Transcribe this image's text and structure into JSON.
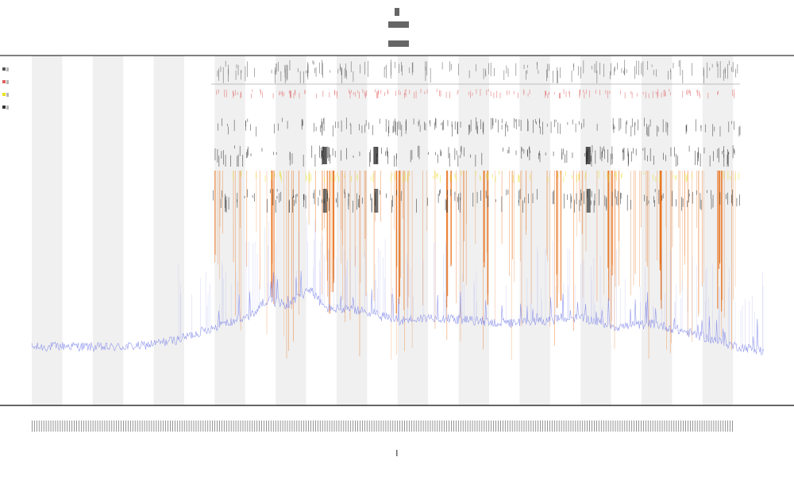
{
  "chart_data": {
    "type": "line",
    "title": "",
    "subtitle_lines": [],
    "xlabel": "",
    "ylabel": "",
    "grid": false,
    "legend_position": "top-left",
    "band_color": "#f0f0f0",
    "baseline_series": {
      "color": "#7f86e8",
      "x_range": [
        0,
        1
      ],
      "trend": [
        [
          0.0,
          0.05
        ],
        [
          0.05,
          0.06
        ],
        [
          0.1,
          0.05
        ],
        [
          0.15,
          0.06
        ],
        [
          0.2,
          0.1
        ],
        [
          0.25,
          0.18
        ],
        [
          0.3,
          0.25
        ],
        [
          0.32,
          0.35
        ],
        [
          0.35,
          0.32
        ],
        [
          0.38,
          0.42
        ],
        [
          0.4,
          0.3
        ],
        [
          0.45,
          0.28
        ],
        [
          0.5,
          0.22
        ],
        [
          0.55,
          0.24
        ],
        [
          0.6,
          0.22
        ],
        [
          0.65,
          0.2
        ],
        [
          0.7,
          0.22
        ],
        [
          0.75,
          0.24
        ],
        [
          0.8,
          0.18
        ],
        [
          0.85,
          0.2
        ],
        [
          0.9,
          0.14
        ],
        [
          0.93,
          0.1
        ],
        [
          0.96,
          0.06
        ],
        [
          1.0,
          0.03
        ]
      ]
    },
    "marker_tracks": [
      {
        "color": "#555555"
      },
      {
        "color": "#e06060"
      },
      {
        "color": "#333333"
      },
      {
        "color": "#222222"
      },
      {
        "color": "#e8e020"
      },
      {
        "color": "#222222"
      }
    ],
    "spike_color": "#e8701a",
    "spike_groups": [
      0.33,
      0.41,
      0.5,
      0.57,
      0.62,
      0.72,
      0.79,
      0.86,
      0.94
    ]
  }
}
